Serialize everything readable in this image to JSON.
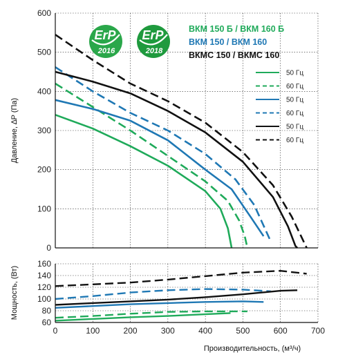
{
  "chart_data": [
    {
      "type": "line",
      "ylabel": "Давление, ∆P (Па)",
      "xlim": [
        0,
        700
      ],
      "ylim": [
        0,
        600
      ],
      "xticks": [
        0,
        100,
        200,
        300,
        400,
        500,
        600,
        700
      ],
      "yticks": [
        0,
        100,
        200,
        300,
        400,
        500,
        600
      ],
      "grid": true,
      "group_labels": [
        {
          "text": "ВКМ 150 Б / ВКМ 160 Б",
          "color": "#1faa5a"
        },
        {
          "text": "ВКМ 150 / ВКМ 160",
          "color": "#1f78b4"
        },
        {
          "text": "ВКМС 150 / ВКМС 160",
          "color": "#111111"
        }
      ],
      "badges": [
        {
          "top": "ErP",
          "year": "2016",
          "color": "#2aa74a"
        },
        {
          "top": "ErP",
          "year": "2018",
          "color": "#1f9a3e"
        }
      ],
      "legend_position": "right",
      "series": [
        {
          "name": "50 Гц",
          "color": "#1faa5a",
          "dash": false,
          "x": [
            0,
            100,
            200,
            300,
            400,
            440,
            460,
            467,
            470
          ],
          "y": [
            340,
            305,
            260,
            210,
            145,
            100,
            50,
            15,
            0
          ]
        },
        {
          "name": "60 Гц",
          "color": "#1faa5a",
          "dash": true,
          "x": [
            0,
            100,
            200,
            300,
            400,
            460,
            490,
            505,
            512
          ],
          "y": [
            420,
            360,
            300,
            235,
            170,
            120,
            70,
            30,
            0
          ]
        },
        {
          "name": "50 Гц",
          "color": "#1f78b4",
          "dash": false,
          "x": [
            0,
            100,
            200,
            300,
            400,
            470,
            520,
            555
          ],
          "y": [
            378,
            355,
            325,
            275,
            200,
            150,
            80,
            30
          ]
        },
        {
          "name": "60 Гц",
          "color": "#1f78b4",
          "dash": true,
          "x": [
            0,
            100,
            200,
            300,
            400,
            480,
            530,
            575
          ],
          "y": [
            462,
            400,
            345,
            300,
            240,
            175,
            110,
            15
          ]
        },
        {
          "name": "50 Гц",
          "color": "#111111",
          "dash": false,
          "x": [
            0,
            100,
            200,
            300,
            400,
            500,
            580,
            620,
            640,
            645
          ],
          "y": [
            450,
            425,
            395,
            350,
            295,
            220,
            130,
            55,
            5,
            0
          ]
        },
        {
          "name": "60 Гц",
          "color": "#111111",
          "dash": true,
          "x": [
            0,
            100,
            200,
            300,
            400,
            500,
            580,
            630,
            660,
            670
          ],
          "y": [
            545,
            480,
            420,
            375,
            320,
            245,
            160,
            80,
            20,
            0
          ]
        }
      ]
    },
    {
      "type": "line",
      "ylabel": "Мощность, (Вт)",
      "xlabel": "Производительность, (м³/ч)",
      "xlim": [
        0,
        700
      ],
      "ylim": [
        60,
        160
      ],
      "xticks": [
        0,
        100,
        200,
        300,
        400,
        500,
        600,
        700
      ],
      "yticks": [
        60,
        80,
        100,
        120,
        140,
        160
      ],
      "grid": true,
      "series": [
        {
          "name": "50 Гц",
          "color": "#1faa5a",
          "dash": false,
          "x": [
            0,
            100,
            200,
            300,
            400,
            467
          ],
          "y": [
            63,
            66,
            69,
            71,
            74,
            76
          ]
        },
        {
          "name": "60 Гц",
          "color": "#1faa5a",
          "dash": true,
          "x": [
            0,
            100,
            200,
            300,
            400,
            512
          ],
          "y": [
            68,
            71,
            75,
            78,
            79,
            79
          ]
        },
        {
          "name": "50 Гц",
          "color": "#1f78b4",
          "dash": false,
          "x": [
            0,
            100,
            200,
            300,
            400,
            500,
            555
          ],
          "y": [
            85,
            88,
            91,
            93,
            95,
            96,
            95
          ]
        },
        {
          "name": "60 Гц",
          "color": "#1f78b4",
          "dash": true,
          "x": [
            0,
            100,
            200,
            300,
            400,
            500,
            575
          ],
          "y": [
            100,
            105,
            111,
            115,
            117,
            116,
            113
          ]
        },
        {
          "name": "50 Гц",
          "color": "#111111",
          "dash": false,
          "x": [
            0,
            100,
            200,
            300,
            400,
            500,
            600,
            645
          ],
          "y": [
            90,
            93,
            96,
            99,
            103,
            108,
            114,
            115
          ]
        },
        {
          "name": "60 Гц",
          "color": "#111111",
          "dash": true,
          "x": [
            0,
            100,
            200,
            300,
            400,
            500,
            600,
            670
          ],
          "y": [
            122,
            125,
            128,
            133,
            139,
            145,
            148,
            143
          ]
        }
      ]
    }
  ]
}
